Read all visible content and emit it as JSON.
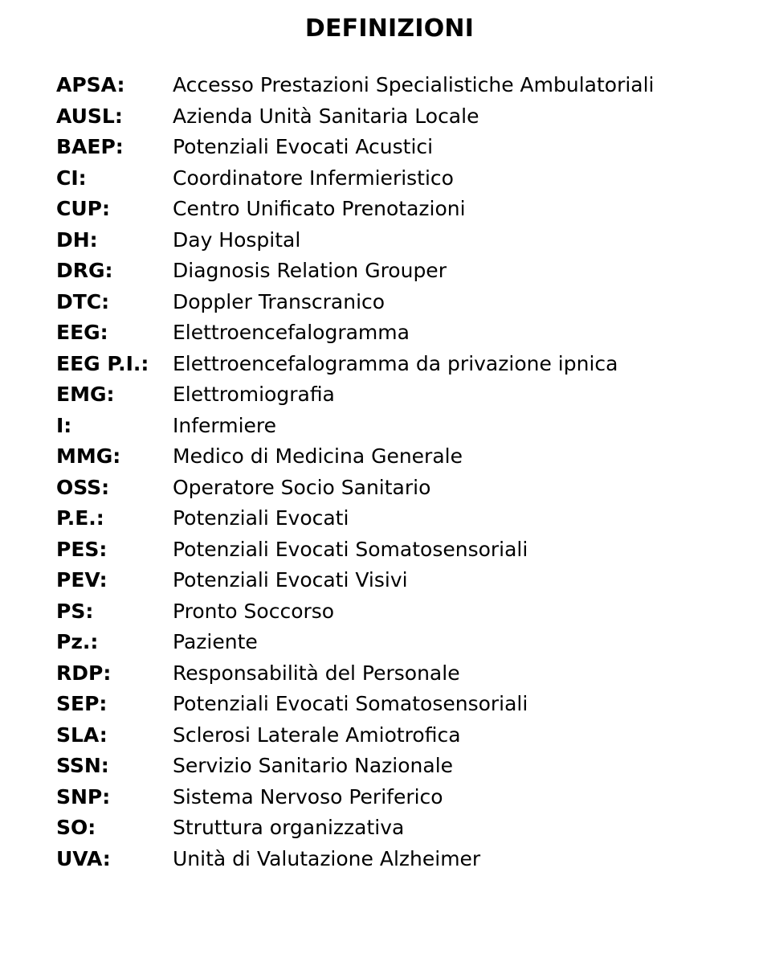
{
  "title": "DEFINIZIONI",
  "text_color": "#000000",
  "background_color": "#ffffff",
  "title_fontsize": 30,
  "body_fontsize": 25,
  "defs": [
    {
      "abbr": "APSA:",
      "desc": "Accesso Prestazioni Specialistiche Ambulatoriali"
    },
    {
      "abbr": "AUSL:",
      "desc": "Azienda Unità Sanitaria Locale"
    },
    {
      "abbr": "BAEP:",
      "desc": "Potenziali Evocati Acustici"
    },
    {
      "abbr": "CI:",
      "desc": "Coordinatore Infermieristico"
    },
    {
      "abbr": "CUP:",
      "desc": "Centro Unificato Prenotazioni"
    },
    {
      "abbr": "DH:",
      "desc": "Day Hospital"
    },
    {
      "abbr": "DRG:",
      "desc": "Diagnosis Relation Grouper"
    },
    {
      "abbr": "DTC:",
      "desc": "Doppler Transcranico"
    },
    {
      "abbr": "EEG:",
      "desc": "Elettroencefalogramma"
    },
    {
      "abbr": "EEG P.I.:",
      "desc": "Elettroencefalogramma da privazione ipnica"
    },
    {
      "abbr": "EMG:",
      "desc": "Elettromiografia"
    },
    {
      "abbr": "I:",
      "desc": "Infermiere"
    },
    {
      "abbr": "MMG:",
      "desc": "Medico di Medicina Generale"
    },
    {
      "abbr": "OSS:",
      "desc": "Operatore Socio Sanitario"
    },
    {
      "abbr": "P.E.:",
      "desc": "Potenziali Evocati"
    },
    {
      "abbr": "PES:",
      "desc": "Potenziali Evocati Somatosensoriali"
    },
    {
      "abbr": "PEV:",
      "desc": "Potenziali Evocati Visivi"
    },
    {
      "abbr": "PS:",
      "desc": "Pronto Soccorso"
    },
    {
      "abbr": "Pz.:",
      "desc": "Paziente"
    },
    {
      "abbr": "RDP:",
      "desc": "Responsabilità del Personale"
    },
    {
      "abbr": "SEP:",
      "desc": "Potenziali Evocati Somatosensoriali"
    },
    {
      "abbr": "SLA:",
      "desc": "Sclerosi Laterale Amiotrofica"
    },
    {
      "abbr": "SSN:",
      "desc": "Servizio Sanitario Nazionale"
    },
    {
      "abbr": "SNP:",
      "desc": "Sistema Nervoso Periferico"
    },
    {
      "abbr": "SO:",
      "desc": "Struttura organizzativa"
    },
    {
      "abbr": "UVA:",
      "desc": "Unità di Valutazione Alzheimer"
    }
  ]
}
